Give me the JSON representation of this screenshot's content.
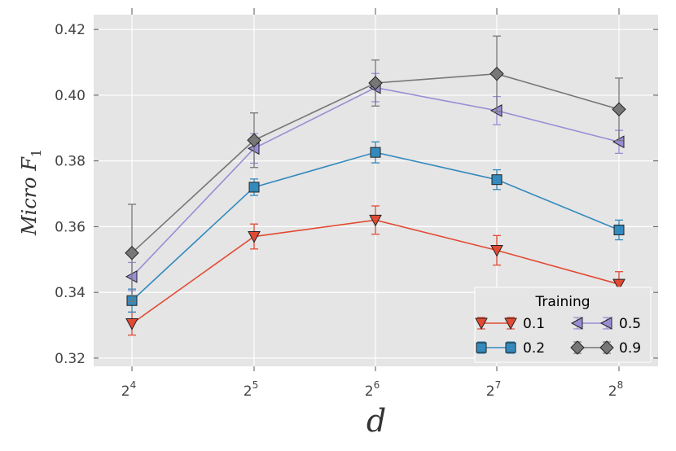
{
  "chart_data": {
    "type": "line",
    "title": "",
    "xlabel": "d",
    "ylabel": "Micro  F",
    "ylabel_subscript": "1",
    "x_tick_base": "2",
    "x_tick_exponents": [
      "4",
      "5",
      "6",
      "7",
      "8"
    ],
    "y_ticks": [
      0.32,
      0.34,
      0.36,
      0.38,
      0.4,
      0.42
    ],
    "y_tick_labels": [
      "0.32",
      "0.34",
      "0.36",
      "0.38",
      "0.40",
      "0.42"
    ],
    "ylim": [
      0.3175,
      0.4245
    ],
    "grid": true,
    "legend_title": "Training",
    "legend_position": "lower-right",
    "series": [
      {
        "name": "0.1",
        "marker": "triangle-down",
        "color": "#E24A33",
        "values": [
          0.3305,
          0.357,
          0.362,
          0.3528,
          0.3425
        ],
        "errors": [
          0.0035,
          0.0038,
          0.0043,
          0.0045,
          0.0038
        ]
      },
      {
        "name": "0.2",
        "marker": "square",
        "color": "#348ABD",
        "values": [
          0.3375,
          0.372,
          0.3826,
          0.3743,
          0.359
        ],
        "errors": [
          0.0035,
          0.0025,
          0.0032,
          0.003,
          0.003
        ]
      },
      {
        "name": "0.5",
        "marker": "triangle-left",
        "color": "#988ED5",
        "values": [
          0.3448,
          0.3838,
          0.4023,
          0.3953,
          0.3858
        ],
        "errors": [
          0.0043,
          0.0045,
          0.0043,
          0.0043,
          0.0035
        ]
      },
      {
        "name": "0.9",
        "marker": "diamond",
        "color": "#777777",
        "values": [
          0.352,
          0.3863,
          0.4037,
          0.4065,
          0.3957
        ],
        "errors": [
          0.0148,
          0.0083,
          0.007,
          0.0115,
          0.0095
        ]
      }
    ]
  }
}
